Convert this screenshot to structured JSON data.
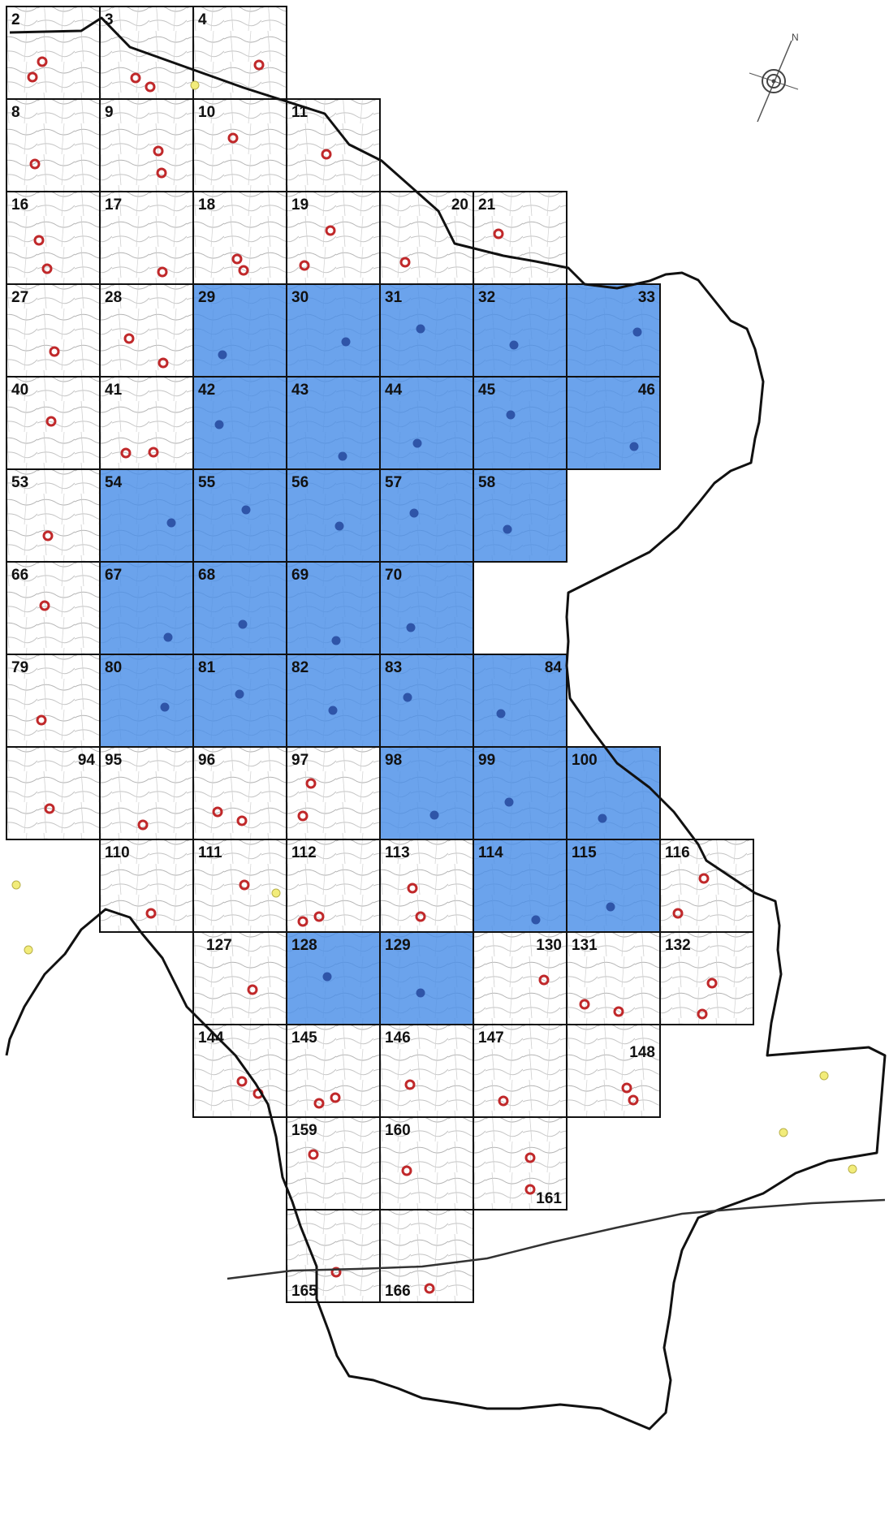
{
  "map": {
    "sheets": [
      {
        "label": "2",
        "col": 0,
        "row": 0,
        "survey": false
      },
      {
        "label": "3",
        "col": 1,
        "row": 0,
        "survey": false
      },
      {
        "label": "4",
        "col": 2,
        "row": 0,
        "survey": false
      },
      {
        "label": "8",
        "col": 0,
        "row": 1,
        "survey": false
      },
      {
        "label": "9",
        "col": 1,
        "row": 1,
        "survey": false
      },
      {
        "label": "10",
        "col": 2,
        "row": 1,
        "survey": false
      },
      {
        "label": "11",
        "col": 3,
        "row": 1,
        "survey": false
      },
      {
        "label": "16",
        "col": 0,
        "row": 2,
        "survey": false
      },
      {
        "label": "17",
        "col": 1,
        "row": 2,
        "survey": false
      },
      {
        "label": "18",
        "col": 2,
        "row": 2,
        "survey": false
      },
      {
        "label": "19",
        "col": 3,
        "row": 2,
        "survey": false
      },
      {
        "label": "20",
        "col": 4,
        "row": 2,
        "survey": false,
        "corner": "right"
      },
      {
        "label": "21",
        "col": 5,
        "row": 2,
        "survey": false
      },
      {
        "label": "27",
        "col": 0,
        "row": 3,
        "survey": false
      },
      {
        "label": "28",
        "col": 1,
        "row": 3,
        "survey": false
      },
      {
        "label": "29",
        "col": 2,
        "row": 3,
        "survey": true
      },
      {
        "label": "30",
        "col": 3,
        "row": 3,
        "survey": true
      },
      {
        "label": "31",
        "col": 4,
        "row": 3,
        "survey": true
      },
      {
        "label": "32",
        "col": 5,
        "row": 3,
        "survey": true
      },
      {
        "label": "33",
        "col": 6,
        "row": 3,
        "survey": true,
        "corner": "right"
      },
      {
        "label": "40",
        "col": 0,
        "row": 4,
        "survey": false
      },
      {
        "label": "41",
        "col": 1,
        "row": 4,
        "survey": false
      },
      {
        "label": "42",
        "col": 2,
        "row": 4,
        "survey": true
      },
      {
        "label": "43",
        "col": 3,
        "row": 4,
        "survey": true
      },
      {
        "label": "44",
        "col": 4,
        "row": 4,
        "survey": true
      },
      {
        "label": "45",
        "col": 5,
        "row": 4,
        "survey": true
      },
      {
        "label": "46",
        "col": 6,
        "row": 4,
        "survey": true,
        "corner": "right"
      },
      {
        "label": "53",
        "col": 0,
        "row": 5,
        "survey": false
      },
      {
        "label": "54",
        "col": 1,
        "row": 5,
        "survey": true
      },
      {
        "label": "55",
        "col": 2,
        "row": 5,
        "survey": true
      },
      {
        "label": "56",
        "col": 3,
        "row": 5,
        "survey": true
      },
      {
        "label": "57",
        "col": 4,
        "row": 5,
        "survey": true
      },
      {
        "label": "58",
        "col": 5,
        "row": 5,
        "survey": true
      },
      {
        "label": "66",
        "col": 0,
        "row": 6,
        "survey": false
      },
      {
        "label": "67",
        "col": 1,
        "row": 6,
        "survey": true
      },
      {
        "label": "68",
        "col": 2,
        "row": 6,
        "survey": true
      },
      {
        "label": "69",
        "col": 3,
        "row": 6,
        "survey": true
      },
      {
        "label": "70",
        "col": 4,
        "row": 6,
        "survey": true
      },
      {
        "label": "79",
        "col": 0,
        "row": 7,
        "survey": false
      },
      {
        "label": "80",
        "col": 1,
        "row": 7,
        "survey": true
      },
      {
        "label": "81",
        "col": 2,
        "row": 7,
        "survey": true
      },
      {
        "label": "82",
        "col": 3,
        "row": 7,
        "survey": true
      },
      {
        "label": "83",
        "col": 4,
        "row": 7,
        "survey": true
      },
      {
        "label": "84",
        "col": 5,
        "row": 7,
        "survey": true,
        "corner": "right"
      },
      {
        "label": "94",
        "col": 0,
        "row": 8,
        "survey": false,
        "corner": "right"
      },
      {
        "label": "95",
        "col": 1,
        "row": 8,
        "survey": false
      },
      {
        "label": "96",
        "col": 2,
        "row": 8,
        "survey": false
      },
      {
        "label": "97",
        "col": 3,
        "row": 8,
        "survey": false
      },
      {
        "label": "98",
        "col": 4,
        "row": 8,
        "survey": true
      },
      {
        "label": "99",
        "col": 5,
        "row": 8,
        "survey": true
      },
      {
        "label": "100",
        "col": 6,
        "row": 8,
        "survey": true
      },
      {
        "label": "110",
        "col": 1,
        "row": 9,
        "survey": false
      },
      {
        "label": "111",
        "col": 2,
        "row": 9,
        "survey": false
      },
      {
        "label": "112",
        "col": 3,
        "row": 9,
        "survey": false
      },
      {
        "label": "113",
        "col": 4,
        "row": 9,
        "survey": false
      },
      {
        "label": "114",
        "col": 5,
        "row": 9,
        "survey": true
      },
      {
        "label": "115",
        "col": 6,
        "row": 9,
        "survey": true
      },
      {
        "label": "116",
        "col": 7,
        "row": 9,
        "survey": false
      },
      {
        "label": "127",
        "col": 2,
        "row": 10,
        "survey": false,
        "corner": "indent"
      },
      {
        "label": "128",
        "col": 3,
        "row": 10,
        "survey": true
      },
      {
        "label": "129",
        "col": 4,
        "row": 10,
        "survey": true
      },
      {
        "label": "130",
        "col": 5,
        "row": 10,
        "survey": false,
        "corner": "right"
      },
      {
        "label": "131",
        "col": 6,
        "row": 10,
        "survey": false
      },
      {
        "label": "132",
        "col": 7,
        "row": 10,
        "survey": false
      },
      {
        "label": "144",
        "col": 2,
        "row": 11,
        "survey": false
      },
      {
        "label": "145",
        "col": 3,
        "row": 11,
        "survey": false
      },
      {
        "label": "146",
        "col": 4,
        "row": 11,
        "survey": false
      },
      {
        "label": "147",
        "col": 5,
        "row": 11,
        "survey": false
      },
      {
        "label": "148",
        "col": 6,
        "row": 11,
        "survey": false,
        "corner": "right-low"
      },
      {
        "label": "159",
        "col": 3,
        "row": 12,
        "survey": false
      },
      {
        "label": "160",
        "col": 4,
        "row": 12,
        "survey": false
      },
      {
        "label": "161",
        "col": 5,
        "row": 12,
        "survey": false,
        "corner": "bottom-right"
      },
      {
        "label": "165",
        "col": 3,
        "row": 13,
        "survey": false,
        "corner": "bottom"
      },
      {
        "label": "166",
        "col": 4,
        "row": 13,
        "survey": false,
        "corner": "bottom"
      }
    ],
    "colors": {
      "survey_fill": "#4a8fe8",
      "grid_line": "#111111",
      "boundary": "#111111",
      "site_red": "#c0282a",
      "site_blue": "#2f55a8",
      "site_yellow": "#f2ec7a",
      "base_map": "#9a9a9a"
    },
    "compass": "north-arrow-icon"
  }
}
